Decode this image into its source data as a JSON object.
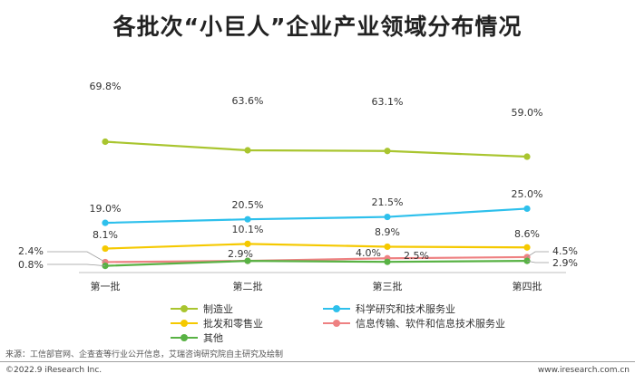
{
  "title": "各批次“小巨人”企业产业领域分布情况",
  "chart_data": {
    "type": "line",
    "title": "各批次“小巨人”企业产业领域分布情况",
    "categories": [
      "第一批",
      "第二批",
      "第三批",
      "第四批"
    ],
    "series": [
      {
        "name": "制造业",
        "color": "#a9c52f",
        "values": [
          69.8,
          63.6,
          63.1,
          59.0
        ],
        "labels": [
          "69.8%",
          "63.6%",
          "63.1%",
          "59.0%"
        ]
      },
      {
        "name": "科学研究和技术服务业",
        "color": "#2ec0ec",
        "values": [
          19.0,
          20.5,
          21.5,
          25.0
        ],
        "labels": [
          "19.0%",
          "20.5%",
          "21.5%",
          "25.0%"
        ]
      },
      {
        "name": "批发和零售业",
        "color": "#f5c900",
        "values": [
          8.1,
          10.1,
          8.9,
          8.6
        ],
        "labels": [
          "8.1%",
          "10.1%",
          "8.9%",
          "8.6%"
        ]
      },
      {
        "name": "信息传输、软件和信息技术服务业",
        "color": "#ee8182",
        "values": [
          2.4,
          2.9,
          4.0,
          4.5
        ],
        "labels": [
          "2.4%",
          "2.9%",
          "4.0%",
          "4.5%"
        ]
      },
      {
        "name": "其他",
        "color": "#58b244",
        "values": [
          0.8,
          2.9,
          2.5,
          2.9
        ],
        "labels": [
          "0.8%",
          "2.9%",
          "2.5%",
          "2.9%"
        ]
      }
    ],
    "legend_placement": "bottom",
    "grid": false
  },
  "footer": {
    "source": "来源：工信部官网、企查查等行业公开信息，艾瑞咨询研究院自主研究及绘制",
    "copyright": "©2022.9 iResearch Inc.",
    "website": "www.iresearch.com.cn"
  }
}
